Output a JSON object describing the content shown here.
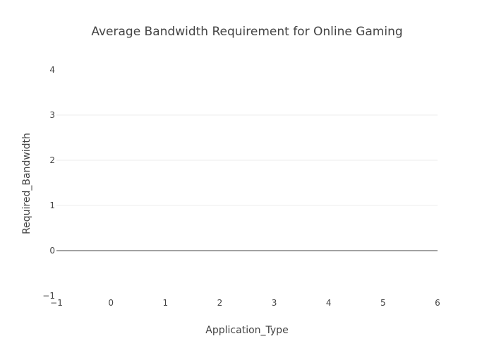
{
  "chart_data": {
    "type": "bar",
    "title": "Average Bandwidth Requirement for Online Gaming",
    "xlabel": "Application_Type",
    "ylabel": "Required_Bandwidth",
    "xlim": [
      -1,
      6
    ],
    "ylim": [
      -1,
      4
    ],
    "x_ticks": [
      "−1",
      "0",
      "1",
      "2",
      "3",
      "4",
      "5",
      "6"
    ],
    "y_ticks": [
      "−1",
      "0",
      "1",
      "2",
      "3",
      "4"
    ],
    "categories": [],
    "values": [],
    "grid": true,
    "legend": "none",
    "colors": {
      "text": "#444444",
      "grid": "#eeeeee",
      "zero_line": "#444444",
      "background": "#ffffff"
    }
  }
}
